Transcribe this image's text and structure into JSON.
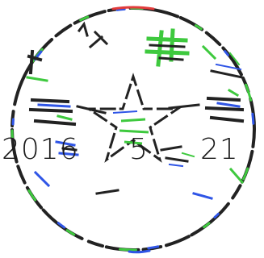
{
  "seal": {
    "kind": "official-stamp",
    "lettering_is_graphic": true,
    "ring_colors": {
      "outline": "#222222",
      "green": "#3ec93e",
      "blue": "#2f55e6",
      "red": "#e23b3b"
    }
  },
  "date": {
    "year": "2016",
    "month": "5",
    "day": "21"
  }
}
